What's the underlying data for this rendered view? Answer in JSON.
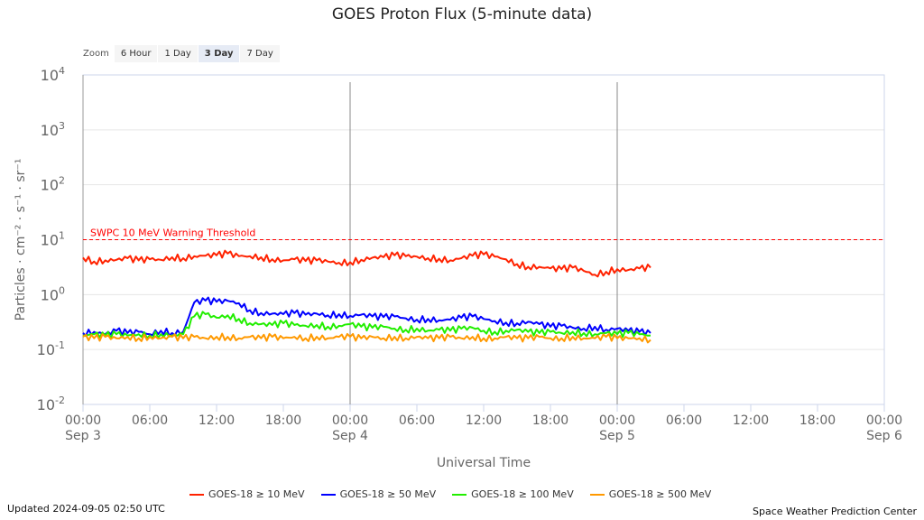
{
  "title": "GOES Proton Flux (5-minute data)",
  "zoom": {
    "label": "Zoom",
    "buttons": [
      "6 Hour",
      "1 Day",
      "3 Day",
      "7 Day"
    ],
    "selected": "3 Day"
  },
  "updated": "Updated 2024-09-05 02:50 UTC",
  "credit": "Space Weather Prediction Center",
  "chart_data": {
    "type": "line",
    "title": "GOES Proton Flux (5-minute data)",
    "xlabel": "Universal Time",
    "ylabel": "Particles · cm⁻² · s⁻¹ · sr⁻¹",
    "yscale": "log",
    "ylim": [
      0.01,
      10000
    ],
    "ytick_exponents": [
      "4",
      "3",
      "2",
      "1",
      "0",
      "-1",
      "-2"
    ],
    "xlim_hours": [
      0,
      72
    ],
    "xticks": [
      {
        "h": 0,
        "time": "00:00",
        "date": "Sep 3"
      },
      {
        "h": 6,
        "time": "06:00"
      },
      {
        "h": 12,
        "time": "12:00"
      },
      {
        "h": 18,
        "time": "18:00"
      },
      {
        "h": 24,
        "time": "00:00",
        "date": "Sep 4"
      },
      {
        "h": 30,
        "time": "06:00"
      },
      {
        "h": 36,
        "time": "12:00"
      },
      {
        "h": 42,
        "time": "18:00"
      },
      {
        "h": 48,
        "time": "00:00",
        "date": "Sep 5"
      },
      {
        "h": 54,
        "time": "06:00"
      },
      {
        "h": 60,
        "time": "12:00"
      },
      {
        "h": 66,
        "time": "18:00"
      },
      {
        "h": 72,
        "time": "00:00",
        "date": "Sep 6"
      }
    ],
    "threshold": {
      "value": 10,
      "label": "SWPC 10 MeV Warning Threshold",
      "color": "#ff0000"
    },
    "x_hours_step": 1,
    "series": [
      {
        "name": "GOES-18 ≥ 10 MeV",
        "color": "#ff2200",
        "values": [
          4.7,
          4.0,
          4.2,
          4.3,
          4.6,
          4.2,
          4.4,
          4.3,
          4.8,
          4.6,
          5.0,
          5.1,
          5.2,
          5.6,
          5.0,
          5.0,
          4.8,
          4.4,
          4.2,
          4.4,
          4.1,
          4.2,
          4.0,
          3.8,
          3.9,
          4.3,
          4.7,
          4.8,
          5.2,
          5.0,
          4.9,
          4.6,
          4.5,
          4.2,
          4.6,
          5.1,
          5.4,
          4.9,
          4.4,
          3.6,
          3.2,
          3.2,
          3.0,
          2.9,
          3.1,
          2.7,
          2.3,
          2.6,
          2.9,
          2.8,
          3.0,
          3.1
        ]
      },
      {
        "name": "GOES-18 ≥ 50 MeV",
        "color": "#0000ff",
        "values": [
          0.2,
          0.21,
          0.19,
          0.22,
          0.2,
          0.21,
          0.19,
          0.22,
          0.2,
          0.21,
          0.72,
          0.78,
          0.74,
          0.77,
          0.7,
          0.52,
          0.46,
          0.45,
          0.44,
          0.46,
          0.43,
          0.45,
          0.42,
          0.44,
          0.41,
          0.43,
          0.4,
          0.39,
          0.4,
          0.37,
          0.35,
          0.36,
          0.34,
          0.35,
          0.38,
          0.4,
          0.36,
          0.33,
          0.31,
          0.3,
          0.32,
          0.29,
          0.26,
          0.27,
          0.25,
          0.24,
          0.26,
          0.23,
          0.24,
          0.22,
          0.21,
          0.2
        ]
      },
      {
        "name": "GOES-18 ≥ 100 MeV",
        "color": "#22ee00",
        "values": [
          0.18,
          0.19,
          0.18,
          0.19,
          0.18,
          0.19,
          0.18,
          0.19,
          0.18,
          0.19,
          0.4,
          0.44,
          0.38,
          0.42,
          0.36,
          0.3,
          0.29,
          0.28,
          0.3,
          0.28,
          0.27,
          0.28,
          0.26,
          0.27,
          0.29,
          0.26,
          0.25,
          0.26,
          0.24,
          0.23,
          0.24,
          0.22,
          0.23,
          0.22,
          0.24,
          0.25,
          0.22,
          0.21,
          0.22,
          0.23,
          0.21,
          0.2,
          0.21,
          0.2,
          0.21,
          0.2,
          0.19,
          0.2,
          0.19,
          0.2,
          0.19,
          0.18
        ]
      },
      {
        "name": "GOES-18 ≥ 500 MeV",
        "color": "#ff9900",
        "values": [
          0.17,
          0.16,
          0.17,
          0.16,
          0.17,
          0.16,
          0.17,
          0.16,
          0.17,
          0.16,
          0.17,
          0.16,
          0.17,
          0.17,
          0.16,
          0.17,
          0.16,
          0.17,
          0.16,
          0.17,
          0.16,
          0.17,
          0.16,
          0.17,
          0.17,
          0.16,
          0.17,
          0.16,
          0.17,
          0.16,
          0.17,
          0.16,
          0.16,
          0.17,
          0.16,
          0.17,
          0.16,
          0.16,
          0.17,
          0.16,
          0.16,
          0.17,
          0.16,
          0.16,
          0.17,
          0.16,
          0.16,
          0.17,
          0.16,
          0.16,
          0.16,
          0.15
        ]
      }
    ]
  }
}
